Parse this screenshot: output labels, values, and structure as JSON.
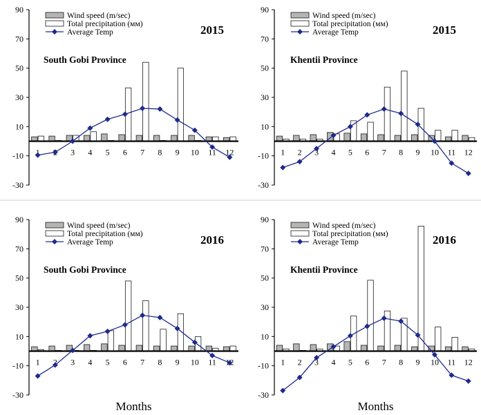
{
  "legend_labels": {
    "wind": "Wind speed (m/sec)",
    "precip": "Total precipitation (мм)",
    "temp": "Average Temp"
  },
  "months_label": "Months",
  "colors": {
    "wind_fill": "#b5b5b5",
    "precip_fill": "#ffffff",
    "bar_stroke": "#1a1a1a",
    "temp_line": "#1f2a8c",
    "axis": "#000000"
  },
  "chart_data": [
    {
      "type": "bar",
      "title": "South Gobi Province",
      "year": "2015",
      "categories": [
        "1",
        "2",
        "3",
        "4",
        "5",
        "6",
        "7",
        "8",
        "9",
        "10",
        "11",
        "12"
      ],
      "ylim": [
        -30,
        90
      ],
      "yticks": [
        90,
        70,
        50,
        30,
        10,
        -10,
        -30
      ],
      "xlabel": "",
      "series": [
        {
          "name": "Wind speed (m/sec)",
          "kind": "bar",
          "values": [
            3,
            3.5,
            4,
            4,
            5,
            4.5,
            4,
            4,
            4,
            4,
            3,
            2.5
          ]
        },
        {
          "name": "Total precipitation (мм)",
          "kind": "bar",
          "values": [
            3.5,
            0.5,
            4,
            6.5,
            0.5,
            36.5,
            54,
            0.5,
            50,
            0.5,
            3,
            3
          ]
        },
        {
          "name": "Average Temp",
          "kind": "line",
          "values": [
            -9.5,
            -7.5,
            0,
            9,
            15,
            18.5,
            22.5,
            22,
            14.5,
            7.5,
            -4,
            -11
          ]
        }
      ]
    },
    {
      "type": "bar",
      "title": "Khentii Province",
      "year": "2015",
      "categories": [
        "1",
        "2",
        "3",
        "4",
        "5",
        "6",
        "7",
        "8",
        "9",
        "10",
        "11",
        "12"
      ],
      "ylim": [
        -30,
        90
      ],
      "yticks": [
        90,
        70,
        50,
        30,
        10,
        -10,
        -30
      ],
      "xlabel": "",
      "series": [
        {
          "name": "Wind speed (m/sec)",
          "kind": "bar",
          "values": [
            3.5,
            4,
            4.5,
            6,
            5.5,
            5,
            4.5,
            4,
            4.5,
            4,
            3,
            4
          ]
        },
        {
          "name": "Total precipitation (мм)",
          "kind": "bar",
          "values": [
            1.5,
            1.5,
            1.5,
            5,
            14,
            13,
            37,
            48,
            22.5,
            7.5,
            7.5,
            2.5
          ]
        },
        {
          "name": "Average Temp",
          "kind": "line",
          "values": [
            -18,
            -14,
            -5,
            4,
            10,
            18,
            22,
            19,
            11.5,
            0,
            -15,
            -22
          ]
        }
      ]
    },
    {
      "type": "bar",
      "title": "South Gobi Province",
      "year": "2016",
      "categories": [
        "1",
        "2",
        "3",
        "4",
        "5",
        "6",
        "7",
        "8",
        "9",
        "10",
        "11",
        "12"
      ],
      "ylim": [
        -30,
        90
      ],
      "yticks": [
        90,
        70,
        50,
        30,
        10,
        -10,
        -30
      ],
      "xlabel": "Months",
      "series": [
        {
          "name": "Wind speed (m/sec)",
          "kind": "bar",
          "values": [
            3,
            3.5,
            4,
            4.5,
            5,
            4,
            4,
            3.5,
            3.5,
            3.5,
            3.5,
            3
          ]
        },
        {
          "name": "Total precipitation (мм)",
          "kind": "bar",
          "values": [
            1,
            0.5,
            0.5,
            0.5,
            14,
            48,
            34.5,
            15,
            25.5,
            10,
            2,
            3.5
          ]
        },
        {
          "name": "Average Temp",
          "kind": "line",
          "values": [
            -17,
            -9.5,
            0.5,
            10.5,
            13.5,
            18,
            24.5,
            23,
            15.5,
            6,
            -3,
            -8
          ]
        }
      ]
    },
    {
      "type": "bar",
      "title": "Khentii Province",
      "year": "2016",
      "categories": [
        "1",
        "2",
        "3",
        "4",
        "5",
        "6",
        "7",
        "8",
        "9",
        "10",
        "11",
        "12"
      ],
      "ylim": [
        -30,
        90
      ],
      "yticks": [
        90,
        70,
        50,
        30,
        10,
        -10,
        -30
      ],
      "xlabel": "Months",
      "series": [
        {
          "name": "Wind speed (m/sec)",
          "kind": "bar",
          "values": [
            4,
            5,
            4.5,
            5,
            6.5,
            4,
            3.5,
            4,
            3,
            3.5,
            3,
            3
          ]
        },
        {
          "name": "Total precipitation (мм)",
          "kind": "bar",
          "values": [
            1.5,
            0.5,
            1.5,
            3.5,
            24,
            48.5,
            27.5,
            22.5,
            85.5,
            16.5,
            9.5,
            1.5
          ]
        },
        {
          "name": "Average Temp",
          "kind": "line",
          "values": [
            -27,
            -18,
            -4.5,
            3,
            10.5,
            17,
            22.5,
            20.5,
            11,
            -2.5,
            -16.5,
            -20.5
          ]
        }
      ]
    }
  ]
}
